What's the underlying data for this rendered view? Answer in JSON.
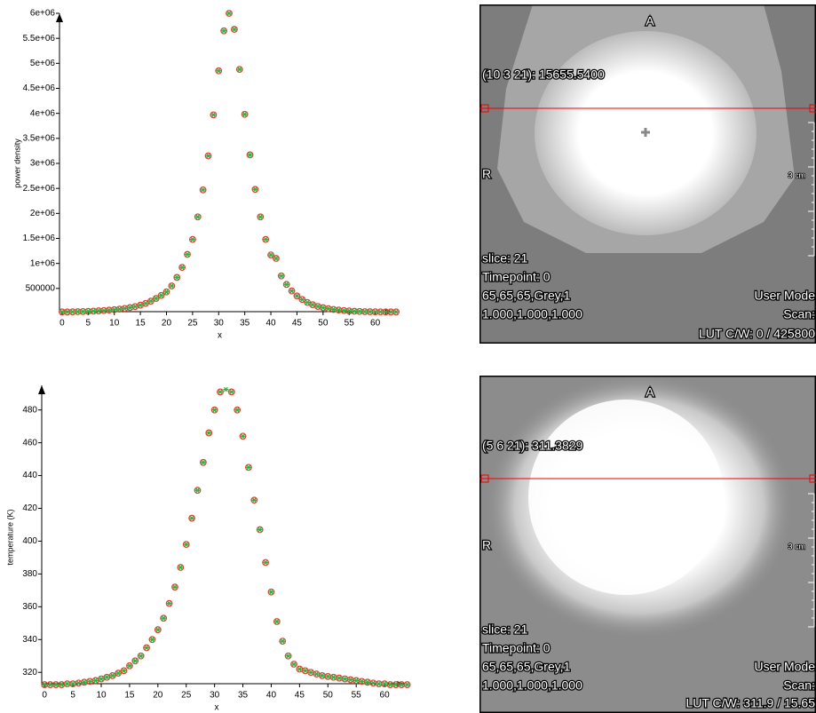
{
  "chart_data": [
    {
      "type": "scatter",
      "x_label": "x",
      "y_label": "power density",
      "xlim": [
        -0.5,
        65
      ],
      "ylim": [
        0,
        6000000
      ],
      "xticks": [
        0,
        5,
        10,
        15,
        20,
        25,
        30,
        35,
        40,
        45,
        50,
        55,
        60
      ],
      "yticks": [
        500000,
        {
          "value": 1000000,
          "label": "1e+06"
        },
        {
          "value": 1500000,
          "label": "1.5e+06"
        },
        {
          "value": 2000000,
          "label": "2e+06"
        },
        {
          "value": 2500000,
          "label": "2.5e+06"
        },
        {
          "value": 3000000,
          "label": "3e+06"
        },
        {
          "value": 3500000,
          "label": "3.5e+06"
        },
        {
          "value": 4000000,
          "label": "4e+06"
        },
        {
          "value": 4500000,
          "label": "4.5e+06"
        },
        {
          "value": 5000000,
          "label": "5e+06"
        },
        {
          "value": 5500000,
          "label": "5.5e+06"
        },
        {
          "value": 6000000,
          "label": "6e+06"
        }
      ],
      "x": [
        0,
        1,
        2,
        3,
        4,
        5,
        6,
        7,
        8,
        9,
        10,
        11,
        12,
        13,
        14,
        15,
        16,
        17,
        18,
        19,
        20,
        21,
        22,
        23,
        24,
        25,
        26,
        27,
        28,
        29,
        30,
        31,
        32,
        33,
        34,
        35,
        36,
        37,
        38,
        39,
        40,
        41,
        42,
        43,
        44,
        45,
        46,
        47,
        48,
        49,
        50,
        51,
        52,
        53,
        54,
        55,
        56,
        57,
        58,
        59,
        60,
        61,
        62,
        63,
        64
      ],
      "series": [
        {
          "color": "#e04030",
          "marker": "circle",
          "values": [
            30000,
            30000,
            32000,
            35000,
            38000,
            42000,
            47000,
            52000,
            58000,
            66000,
            75000,
            86000,
            100000,
            117000,
            138000,
            165000,
            200000,
            245000,
            300000,
            360000,
            430000,
            550000,
            720000,
            920000,
            1180000,
            1480000,
            1930000,
            2470000,
            3150000,
            3970000,
            4850000,
            5650000,
            6000000,
            5680000,
            4880000,
            3980000,
            3170000,
            2480000,
            1930000,
            1480000,
            1170000,
            1100000,
            750000,
            580000,
            450000,
            350000,
            280000,
            220000,
            175000,
            140000,
            115000,
            95000,
            80000,
            68000,
            58000,
            50000,
            44000,
            40000,
            36000,
            34000,
            32000,
            31000,
            30000,
            30000,
            30000
          ]
        },
        {
          "color": "#30b040",
          "marker": "star",
          "values": [
            30000,
            30000,
            32000,
            35000,
            38000,
            42000,
            47000,
            52000,
            58000,
            66000,
            75000,
            86000,
            100000,
            117000,
            138000,
            165000,
            200000,
            245000,
            300000,
            360000,
            430000,
            550000,
            720000,
            920000,
            1180000,
            1480000,
            1930000,
            2470000,
            3150000,
            3970000,
            4850000,
            5650000,
            6000000,
            5680000,
            4880000,
            3980000,
            3170000,
            2480000,
            1930000,
            1480000,
            1170000,
            1100000,
            750000,
            580000,
            450000,
            350000,
            280000,
            220000,
            175000,
            140000,
            115000,
            95000,
            80000,
            68000,
            58000,
            50000,
            44000,
            40000,
            36000,
            34000,
            32000,
            31000,
            30000,
            30000,
            30000
          ]
        }
      ]
    },
    {
      "type": "scatter",
      "x_label": "x",
      "y_label": "temperature (K)",
      "xlim": [
        -0.5,
        65
      ],
      "ylim": [
        312,
        495
      ],
      "xticks": [
        0,
        5,
        10,
        15,
        20,
        25,
        30,
        35,
        40,
        45,
        50,
        55,
        60
      ],
      "yticks": [
        320,
        340,
        360,
        380,
        400,
        420,
        440,
        460,
        480
      ],
      "x": [
        0,
        1,
        2,
        3,
        4,
        5,
        6,
        7,
        8,
        9,
        10,
        11,
        12,
        13,
        14,
        15,
        16,
        17,
        18,
        19,
        20,
        21,
        22,
        23,
        24,
        25,
        26,
        27,
        28,
        29,
        30,
        31,
        32,
        33,
        34,
        35,
        36,
        37,
        38,
        39,
        40,
        41,
        42,
        43,
        44,
        45,
        46,
        47,
        48,
        49,
        50,
        51,
        52,
        53,
        54,
        55,
        56,
        57,
        58,
        59,
        60,
        61,
        62,
        63,
        64
      ],
      "series": [
        {
          "color": "#e04030",
          "marker": "circle",
          "values": [
            312.5,
            312.5,
            312.5,
            312.5,
            313,
            313,
            313.5,
            314,
            314.5,
            315,
            316,
            317,
            318,
            319.5,
            321,
            324,
            327,
            330,
            335,
            340,
            346,
            353,
            362,
            372,
            384,
            398,
            414,
            431,
            448,
            466,
            480,
            491,
            null,
            491,
            480,
            464,
            445,
            425,
            407,
            387,
            369,
            351,
            339,
            330,
            325,
            322,
            321,
            320,
            319,
            318,
            317.5,
            317,
            316.5,
            316,
            315.5,
            315,
            314.5,
            314,
            313.5,
            313,
            313,
            312.5,
            312.5,
            312.5,
            312.5
          ]
        },
        {
          "color": "#30b040",
          "marker": "star",
          "values": [
            312.5,
            312.5,
            312.5,
            312.5,
            313,
            313,
            313.5,
            314,
            314.5,
            315,
            316,
            317,
            318,
            319.5,
            321,
            324,
            327,
            330,
            335,
            340,
            346,
            353,
            362,
            372,
            384,
            398,
            414,
            431,
            448,
            466,
            480,
            491,
            492.5,
            491,
            480,
            464,
            445,
            425,
            407,
            387,
            369,
            351,
            339,
            330,
            325,
            322,
            321,
            320,
            319,
            318,
            317.5,
            317,
            316.5,
            316,
            315.5,
            315,
            314.5,
            314,
            313.5,
            313,
            313,
            312.5,
            312.5,
            312.5,
            312.5
          ]
        }
      ]
    }
  ],
  "viewers": [
    {
      "top": "A",
      "left": "R",
      "probe": "(10 3 21): 15655.5400",
      "scale": "3 cm",
      "info": [
        "slice:  21",
        "Timepoint: 0",
        "65,65,65,Grey,1",
        "1.000,1.000,1.000"
      ],
      "mode": "User Mode",
      "scan": "Scan:",
      "lut": "LUT C/W: 0 / 425800"
    },
    {
      "top": "A",
      "left": "R",
      "probe": "(5 6 21): 311.3829",
      "scale": "3 cm",
      "info": [
        "slice:  21",
        "Timepoint: 0",
        "65,65,65,Grey,1",
        "1.000,1.000,1.000"
      ],
      "mode": "User Mode",
      "scan": "Scan:",
      "lut": "LUT C/W: 311.9 / 15.65"
    }
  ]
}
